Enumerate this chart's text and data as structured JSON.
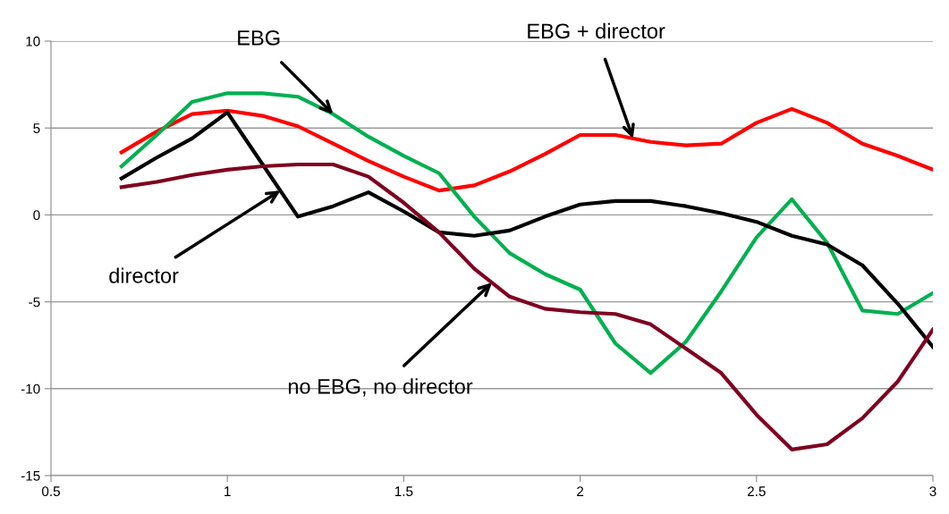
{
  "chart_data": {
    "type": "line",
    "xlim": [
      0.5,
      3
    ],
    "xticks": [
      0.5,
      1,
      1.5,
      2,
      2.5,
      3
    ],
    "ylim": [
      -15,
      10
    ],
    "yticks": [
      -15,
      -10,
      -5,
      0,
      5,
      10
    ],
    "grid": "y",
    "marker": "none",
    "line_style": "solid",
    "x": [
      0.7,
      0.8,
      0.9,
      1.0,
      1.1,
      1.2,
      1.3,
      1.4,
      1.5,
      1.6,
      1.7,
      1.8,
      1.9,
      2.0,
      2.1,
      2.2,
      2.3,
      2.4,
      2.5,
      2.6,
      2.7,
      2.8,
      2.9,
      3.0
    ],
    "series": [
      {
        "color": "#ff0000",
        "values": [
          3.6,
          4.8,
          5.8,
          6.0,
          5.7,
          5.1,
          4.1,
          3.1,
          2.2,
          1.4,
          1.7,
          2.5,
          3.5,
          4.6,
          4.6,
          4.2,
          4.0,
          4.1,
          5.3,
          6.1,
          5.3,
          4.1,
          3.4,
          2.6
        ]
      },
      {
        "color": "#00b050",
        "values": [
          2.8,
          4.6,
          6.5,
          7.0,
          7.0,
          6.8,
          5.8,
          4.5,
          3.4,
          2.4,
          -0.1,
          -2.2,
          -3.4,
          -4.3,
          -7.4,
          -9.1,
          -7.3,
          -4.4,
          -1.3,
          0.9,
          -1.6,
          -5.5,
          -5.7,
          -4.5
        ]
      },
      {
        "color": "#000000",
        "values": [
          2.1,
          3.3,
          4.4,
          5.9,
          2.9,
          -0.1,
          0.5,
          1.3,
          0.2,
          -1.0,
          -1.2,
          -0.9,
          -0.1,
          0.6,
          0.8,
          0.8,
          0.5,
          0.1,
          -0.4,
          -1.2,
          -1.7,
          -2.9,
          -5.1,
          -7.6
        ]
      },
      {
        "color": "#7f0020",
        "values": [
          1.6,
          1.9,
          2.3,
          2.6,
          2.8,
          2.9,
          2.9,
          2.2,
          0.7,
          -1.0,
          -3.1,
          -4.7,
          -5.4,
          -5.6,
          -5.7,
          -6.3,
          -7.7,
          -9.1,
          -11.5,
          -13.5,
          -13.2,
          -11.7,
          -9.6,
          -6.6
        ]
      }
    ],
    "annotations": [
      {
        "text": "EBG",
        "x": 1.3,
        "y": 5.8
      },
      {
        "text": "EBG + director",
        "x": 2.15,
        "y": 4.4
      },
      {
        "text": "director",
        "x": 1.15,
        "y": 1.4
      },
      {
        "text": "no EBG, no director",
        "x": 1.75,
        "y": -3.9
      }
    ]
  }
}
